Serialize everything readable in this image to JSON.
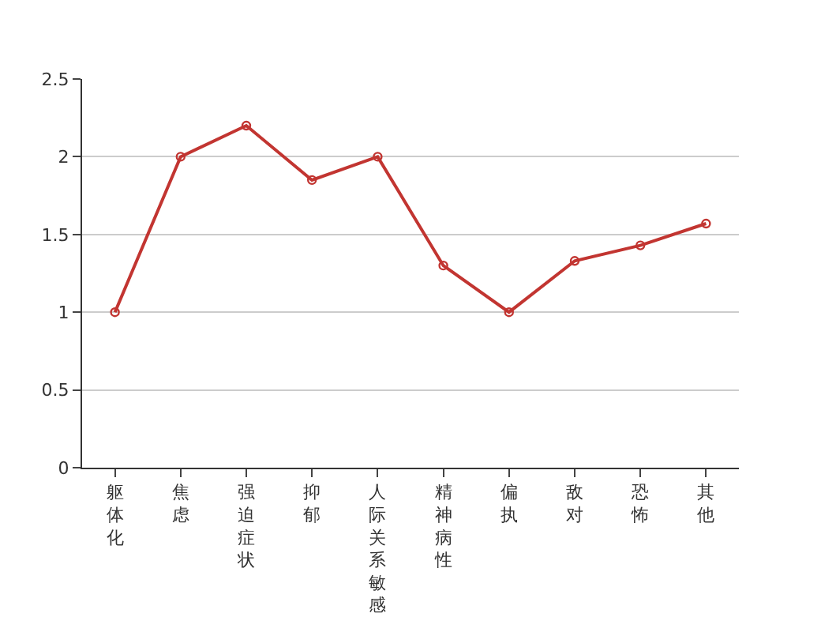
{
  "chart_data": {
    "type": "line",
    "categories": [
      "躯体化",
      "焦虑",
      "强迫症状",
      "抑郁",
      "人际关系敏感",
      "精神病性",
      "偏执",
      "敌对",
      "恐怖",
      "其他"
    ],
    "series": [
      {
        "color": "#c23531",
        "values": [
          1,
          2,
          2.2,
          1.85,
          2,
          1.3,
          1,
          1.33,
          1.43,
          1.57
        ]
      }
    ],
    "ylim": [
      0,
      2.5
    ],
    "yticks": [
      0,
      0.5,
      1,
      1.5,
      2,
      2.5
    ],
    "grid": "y",
    "marker": "circle",
    "line_style": "solid"
  }
}
